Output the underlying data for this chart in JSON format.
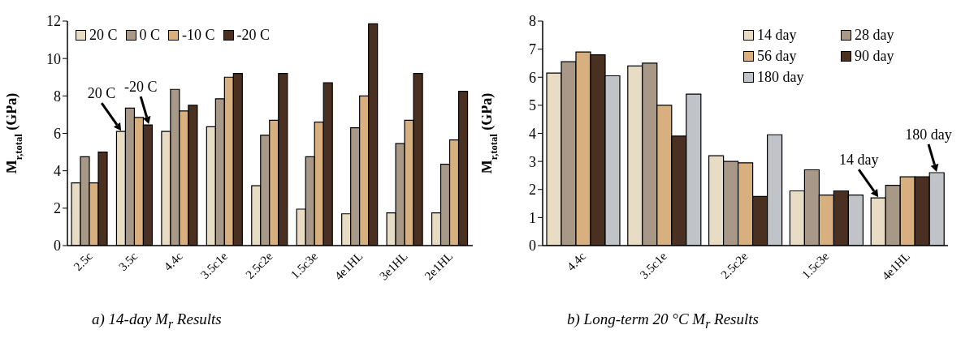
{
  "chart_data": [
    {
      "type": "bar",
      "ylabel": "M$_{r,total}$ (GPa)",
      "categories": [
        "2.5c",
        "3.5c",
        "4.4c",
        "3.5c1e",
        "2.5c2e",
        "1.5c3e",
        "4e1HL",
        "3e1HL",
        "2e1HL"
      ],
      "series": [
        {
          "name": "20 C",
          "color": "#e8dcc4",
          "values": [
            3.35,
            6.1,
            6.1,
            6.35,
            3.2,
            1.95,
            1.7,
            1.75,
            1.75
          ]
        },
        {
          "name": "0 C",
          "color": "#a89888",
          "values": [
            4.75,
            7.35,
            8.35,
            7.85,
            5.9,
            4.75,
            6.3,
            5.45,
            4.35
          ]
        },
        {
          "name": "-10 C",
          "color": "#d8b080",
          "values": [
            3.35,
            6.85,
            7.2,
            9.0,
            6.7,
            6.6,
            8.0,
            6.7,
            5.65
          ]
        },
        {
          "name": "-20 C",
          "color": "#4a3020",
          "values": [
            5.0,
            6.45,
            7.5,
            9.2,
            9.2,
            8.7,
            11.85,
            9.2,
            8.25
          ]
        }
      ],
      "ylim": [
        0,
        12
      ],
      "yticks": [
        0,
        2,
        4,
        6,
        8,
        10,
        12
      ],
      "legend": "top left",
      "annotations": [
        {
          "text": "20 C",
          "x": "3.5c",
          "y": 6.1
        },
        {
          "text": "-20 C",
          "x": "3.5c",
          "y": 6.45
        },
        "a) 14-day M$_{r}$ Results"
      ]
    },
    {
      "type": "bar",
      "ylabel": "M$_{r,total}$ (GPa)",
      "categories": [
        "4.4c",
        "3.5c1e",
        "2.5c2e",
        "1.5c3e",
        "4e1HL"
      ],
      "series": [
        {
          "name": "14 day",
          "color": "#e8dcc4",
          "values": [
            6.15,
            6.4,
            3.2,
            1.95,
            1.7
          ]
        },
        {
          "name": "28 day",
          "color": "#a89888",
          "values": [
            6.55,
            6.5,
            3.0,
            2.7,
            2.15
          ]
        },
        {
          "name": "56 day",
          "color": "#d8b080",
          "values": [
            6.9,
            5.0,
            2.95,
            1.8,
            2.45
          ]
        },
        {
          "name": "90 day",
          "color": "#4a3020",
          "values": [
            6.8,
            3.9,
            1.75,
            1.95,
            2.45
          ]
        },
        {
          "name": "180 day",
          "color": "#c0c4c8",
          "values": [
            6.05,
            5.4,
            3.95,
            1.8,
            2.6
          ]
        }
      ],
      "ylim": [
        0,
        8
      ],
      "yticks": [
        0,
        1,
        2,
        3,
        4,
        5,
        6,
        7,
        8
      ],
      "legend": "top right",
      "annotations": [
        "14 day",
        "180 day",
        "b) Long-term 20 °C M$_{r}$ Results"
      ]
    }
  ]
}
